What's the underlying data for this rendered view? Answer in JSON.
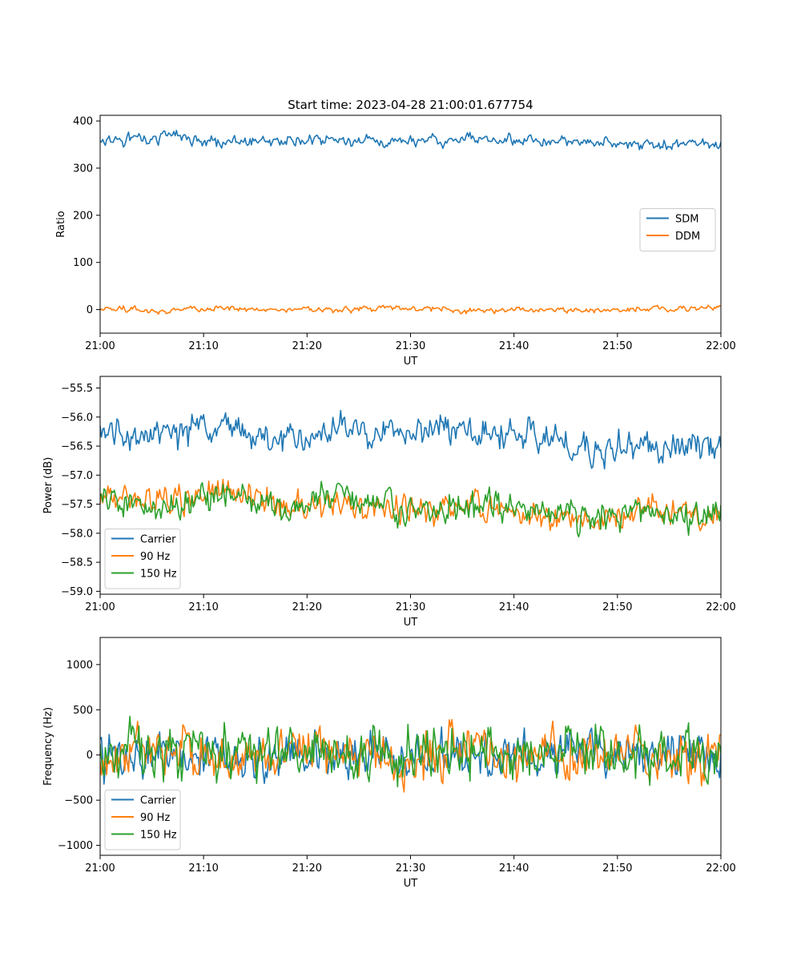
{
  "figure": {
    "title": "Start time: 2023-04-28 21:00:01.677754"
  },
  "colors": {
    "blue": "#1f77b4",
    "orange": "#ff7f0e",
    "green": "#2ca02c"
  },
  "chart_data": [
    {
      "type": "line",
      "title": "Start time: 2023-04-28 21:00:01.677754",
      "xlabel": "UT",
      "ylabel": "Ratio",
      "x_range": [
        "21:00",
        "22:00"
      ],
      "x_ticks": [
        "21:00",
        "21:10",
        "21:20",
        "21:30",
        "21:40",
        "21:50",
        "22:00"
      ],
      "ylim": [
        -50,
        412
      ],
      "y_ticks": [
        0,
        100,
        200,
        300,
        400
      ],
      "y_tick_labels": [
        "0",
        "100",
        "200",
        "300",
        "400"
      ],
      "grid": false,
      "legend": "center-right",
      "x": [
        "21:00",
        "21:06",
        "21:12",
        "21:18",
        "21:24",
        "21:30",
        "21:36",
        "21:42",
        "21:48",
        "21:54",
        "22:00"
      ],
      "series": [
        {
          "name": "SDM",
          "color": "#1f77b4",
          "values": [
            352,
            368,
            355,
            360,
            358,
            356,
            362,
            353,
            357,
            350,
            352
          ],
          "spread": 18
        },
        {
          "name": "DDM",
          "color": "#ff7f0e",
          "values": [
            2,
            -3,
            4,
            -1,
            1,
            3,
            -2,
            0,
            -1,
            2,
            5
          ],
          "spread": 9
        }
      ]
    },
    {
      "type": "line",
      "title": "",
      "xlabel": "UT",
      "ylabel": "Power (dB)",
      "x_range": [
        "21:00",
        "22:00"
      ],
      "x_ticks": [
        "21:00",
        "21:10",
        "21:20",
        "21:30",
        "21:40",
        "21:50",
        "22:00"
      ],
      "ylim": [
        -59.05,
        -55.3
      ],
      "y_ticks": [
        -59.0,
        -58.5,
        -58.0,
        -57.5,
        -57.0,
        -56.5,
        -56.0,
        -55.5
      ],
      "y_tick_labels": [
        "−59.0",
        "−58.5",
        "−58.0",
        "−57.5",
        "−57.0",
        "−56.5",
        "−56.0",
        "−55.5"
      ],
      "grid": false,
      "legend": "lower-left",
      "x": [
        "21:00",
        "21:06",
        "21:12",
        "21:18",
        "21:24",
        "21:30",
        "21:36",
        "21:42",
        "21:48",
        "21:54",
        "22:00"
      ],
      "series": [
        {
          "name": "Carrier",
          "color": "#1f77b4",
          "values": [
            -56.3,
            -56.3,
            -56.2,
            -56.4,
            -56.2,
            -56.2,
            -56.3,
            -56.3,
            -56.6,
            -56.4,
            -56.6
          ],
          "spread": 0.38
        },
        {
          "name": "90 Hz",
          "color": "#ff7f0e",
          "values": [
            -57.4,
            -57.4,
            -57.3,
            -57.5,
            -57.5,
            -57.6,
            -57.5,
            -57.7,
            -57.8,
            -57.6,
            -57.8
          ],
          "spread": 0.35
        },
        {
          "name": "150 Hz",
          "color": "#2ca02c",
          "values": [
            -57.4,
            -57.6,
            -57.3,
            -57.6,
            -57.3,
            -57.6,
            -57.5,
            -57.6,
            -57.7,
            -57.6,
            -57.7
          ],
          "spread": 0.4
        }
      ]
    },
    {
      "type": "line",
      "title": "",
      "xlabel": "UT",
      "ylabel": "Frequency (Hz)",
      "x_range": [
        "21:00",
        "22:00"
      ],
      "x_ticks": [
        "21:00",
        "21:10",
        "21:20",
        "21:30",
        "21:40",
        "21:50",
        "22:00"
      ],
      "ylim": [
        -1110,
        1300
      ],
      "y_ticks": [
        -1000,
        -500,
        0,
        500,
        1000
      ],
      "y_tick_labels": [
        "−1000",
        "−500",
        "0",
        "500",
        "1000"
      ],
      "grid": false,
      "legend": "lower-left",
      "x": [
        "21:00",
        "21:06",
        "21:12",
        "21:18",
        "21:24",
        "21:30",
        "21:36",
        "21:42",
        "21:48",
        "21:54",
        "22:00"
      ],
      "series": [
        {
          "name": "Carrier",
          "color": "#1f77b4",
          "values": [
            -20,
            10,
            -40,
            0,
            20,
            -30,
            10,
            -10,
            30,
            -20,
            -30
          ],
          "spread": 380
        },
        {
          "name": "90 Hz",
          "color": "#ff7f0e",
          "values": [
            -10,
            20,
            -20,
            10,
            30,
            -20,
            20,
            0,
            40,
            -10,
            -20
          ],
          "spread": 390
        },
        {
          "name": "150 Hz",
          "color": "#2ca02c",
          "values": [
            20,
            60,
            10,
            50,
            70,
            20,
            60,
            40,
            80,
            30,
            10
          ],
          "spread": 420
        }
      ]
    }
  ]
}
